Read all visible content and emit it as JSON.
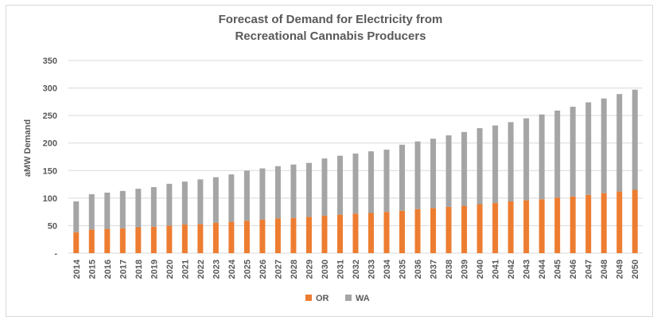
{
  "chart_data": {
    "type": "bar",
    "stacked": true,
    "title_line1": "Forecast of Demand for Electricity from",
    "title_line2": "Recreational Cannabis Producers",
    "xlabel": "",
    "ylabel": "aMW Demand",
    "ylim": [
      0,
      350
    ],
    "ytick_values": [
      0,
      50,
      100,
      150,
      200,
      250,
      300,
      350
    ],
    "ytick_labels": [
      "-",
      "50",
      "100",
      "150",
      "200",
      "250",
      "300",
      "350"
    ],
    "grid": true,
    "legend_position": "bottom",
    "categories": [
      "2014",
      "2015",
      "2016",
      "2017",
      "2018",
      "2019",
      "2020",
      "2021",
      "2022",
      "2023",
      "2024",
      "2025",
      "2026",
      "2027",
      "2028",
      "2029",
      "2030",
      "2031",
      "2032",
      "2033",
      "2034",
      "2035",
      "2036",
      "2037",
      "2038",
      "2039",
      "2040",
      "2041",
      "2042",
      "2043",
      "2044",
      "2045",
      "2046",
      "2047",
      "2048",
      "2049",
      "2050"
    ],
    "series": [
      {
        "name": "OR",
        "color": "#ed7d31",
        "values": [
          38,
          43,
          44,
          45,
          47,
          48,
          50,
          52,
          53,
          55,
          57,
          59,
          61,
          63,
          64,
          66,
          68,
          70,
          72,
          73,
          75,
          77,
          80,
          82,
          84,
          86,
          89,
          91,
          94,
          96,
          98,
          101,
          103,
          106,
          109,
          112,
          115
        ]
      },
      {
        "name": "WA",
        "color": "#a5a5a5",
        "values": [
          56,
          64,
          66,
          68,
          70,
          72,
          76,
          78,
          81,
          83,
          86,
          91,
          93,
          95,
          97,
          98,
          104,
          107,
          109,
          112,
          113,
          120,
          123,
          126,
          130,
          134,
          138,
          141,
          144,
          149,
          154,
          158,
          163,
          168,
          172,
          177,
          182
        ]
      }
    ]
  }
}
